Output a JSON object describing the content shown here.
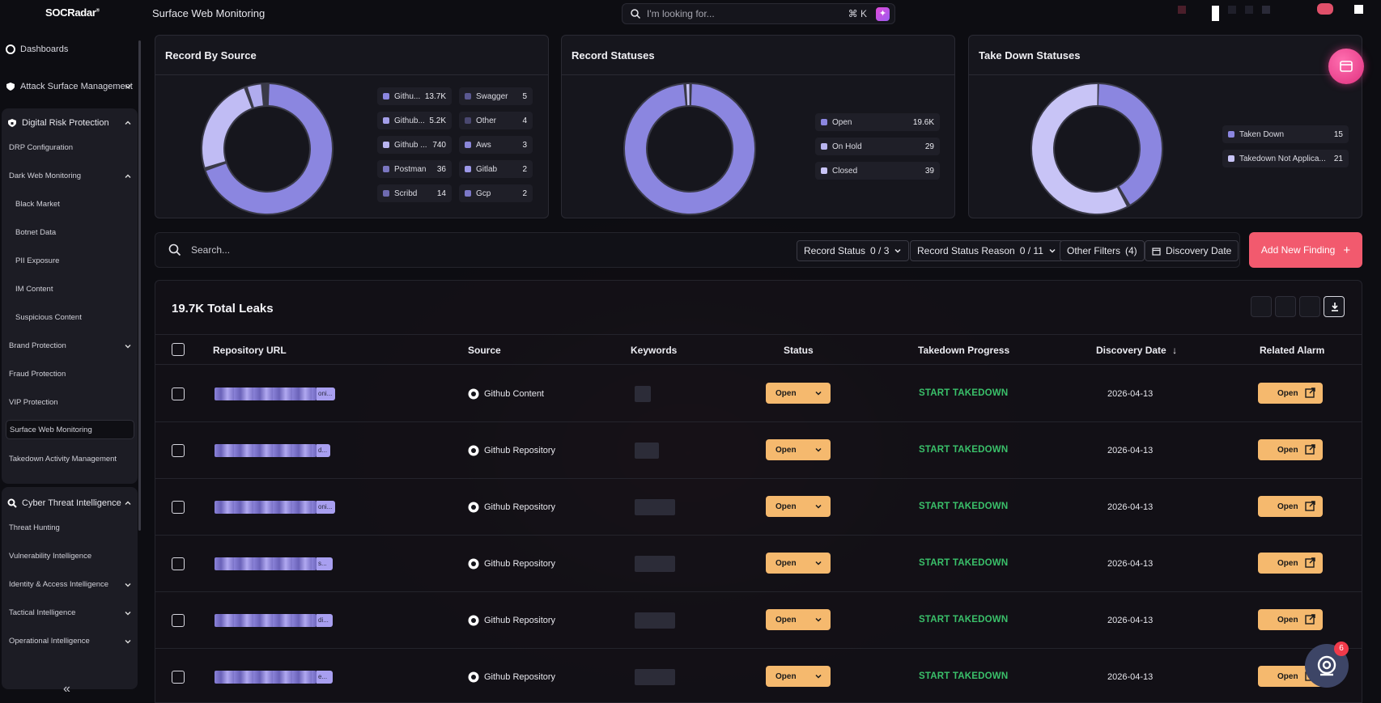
{
  "app": {
    "logo": "SOCRadar",
    "page_title": "Surface Web Monitoring",
    "search_placeholder": "I'm looking for...",
    "search_shortcut": "⌘ K"
  },
  "sidebar": {
    "dashboards": "Dashboards",
    "asm": "Attack Surface Management",
    "drp": {
      "label": "Digital Risk Protection",
      "items": [
        "DRP Configuration",
        "Dark Web Monitoring",
        "Black Market",
        "Botnet Data",
        "PII Exposure",
        "IM Content",
        "Suspicious Content",
        "Brand Protection",
        "Fraud Protection",
        "VIP Protection",
        "Surface Web Monitoring",
        "Takedown Activity Management"
      ]
    },
    "cti": {
      "label": "Cyber Threat Intelligence",
      "items": [
        "Threat Hunting",
        "Vulnerability Intelligence",
        "Identity & Access Intelligence",
        "Tactical Intelligence",
        "Operational Intelligence"
      ]
    }
  },
  "cards": {
    "record_by_source": {
      "title": "Record By Source",
      "legend": [
        {
          "label": "Githu...",
          "value": "13.7K",
          "color": "#8b86e0"
        },
        {
          "label": "Github...",
          "value": "5.2K",
          "color": "#a39ee8"
        },
        {
          "label": "Github ...",
          "value": "740",
          "color": "#b9b5f0"
        },
        {
          "label": "Postman",
          "value": "36",
          "color": "#7a76c0"
        },
        {
          "label": "Scribd",
          "value": "14",
          "color": "#6e6ab0"
        },
        {
          "label": "Swagger",
          "value": "5",
          "color": "#5a5890"
        },
        {
          "label": "Other",
          "value": "4",
          "color": "#4a4870"
        },
        {
          "label": "Aws",
          "value": "3",
          "color": "#8a86d8"
        },
        {
          "label": "Gitlab",
          "value": "2",
          "color": "#9c98e8"
        },
        {
          "label": "Gcp",
          "value": "2",
          "color": "#7c78c8"
        }
      ]
    },
    "record_statuses": {
      "title": "Record Statuses",
      "legend": [
        {
          "label": "Open",
          "value": "19.6K",
          "color": "#8b86e0"
        },
        {
          "label": "On Hold",
          "value": "29",
          "color": "#b9b5f0"
        },
        {
          "label": "Closed",
          "value": "39",
          "color": "#c8c4f6"
        }
      ]
    },
    "takedown_statuses": {
      "title": "Take Down Statuses",
      "legend": [
        {
          "label": "Taken Down",
          "value": "15",
          "color": "#8b86e0"
        },
        {
          "label": "Takedown Not Applica...",
          "value": "21",
          "color": "#c8c4f6"
        }
      ]
    }
  },
  "filters": {
    "search_placeholder": "Search...",
    "record_status": {
      "label": "Record Status",
      "count": "0 / 3"
    },
    "record_status_reason": {
      "label": "Record Status Reason",
      "count": "0 / 11"
    },
    "other_filters": {
      "label": "Other Filters",
      "count": "(4)"
    },
    "discovery_date": "Discovery Date",
    "add_new": "Add New Finding"
  },
  "table": {
    "total": "19.7K Total Leaks",
    "headers": {
      "url": "Repository URL",
      "source": "Source",
      "keywords": "Keywords",
      "status": "Status",
      "takedown": "Takedown Progress",
      "date": "Discovery Date",
      "alarm": "Related Alarm"
    },
    "rows": [
      {
        "url_tail": "oni...",
        "source": "Github Content",
        "status": "Open",
        "takedown": "START TAKEDOWN",
        "date": "2026-04-13",
        "alarm": "Open"
      },
      {
        "url_tail": "d...",
        "source": "Github Repository",
        "status": "Open",
        "takedown": "START TAKEDOWN",
        "date": "2026-04-13",
        "alarm": "Open"
      },
      {
        "url_tail": "oni...",
        "source": "Github Repository",
        "status": "Open",
        "takedown": "START TAKEDOWN",
        "date": "2026-04-13",
        "alarm": "Open"
      },
      {
        "url_tail": "s...",
        "source": "Github Repository",
        "status": "Open",
        "takedown": "START TAKEDOWN",
        "date": "2026-04-13",
        "alarm": "Open"
      },
      {
        "url_tail": "di...",
        "source": "Github Repository",
        "status": "Open",
        "takedown": "START TAKEDOWN",
        "date": "2026-04-13",
        "alarm": "Open"
      },
      {
        "url_tail": "e...",
        "source": "Github Repository",
        "status": "Open",
        "takedown": "START TAKEDOWN",
        "date": "2026-04-13",
        "alarm": "Open"
      }
    ]
  },
  "chat_badge": "6"
}
